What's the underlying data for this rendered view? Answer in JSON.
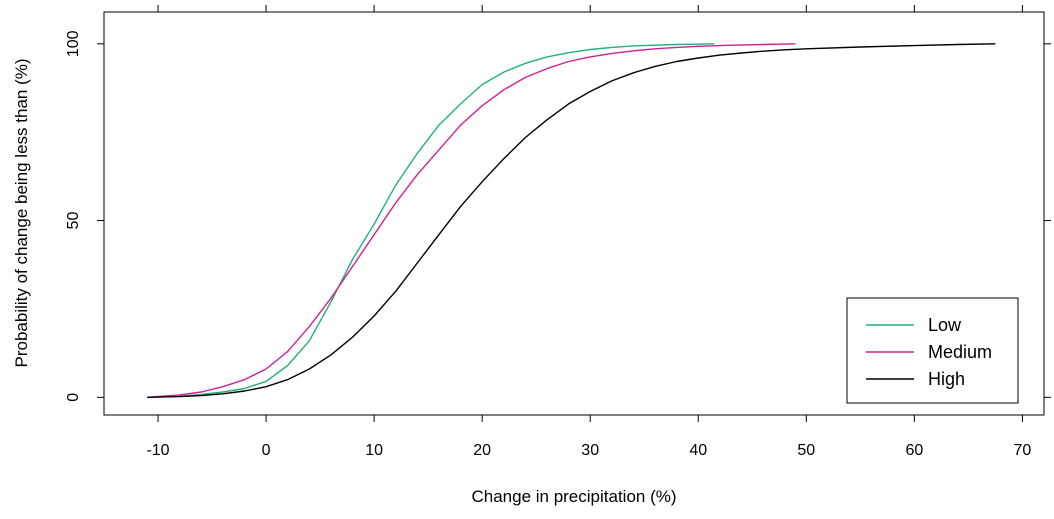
{
  "chart_data": {
    "type": "line",
    "title": "",
    "xlabel": "Change in precipitation (%)",
    "ylabel": "Probability of change being less than (%)",
    "xlim": [
      -15,
      72
    ],
    "ylim": [
      -5,
      109
    ],
    "xticks": [
      -10,
      0,
      10,
      20,
      30,
      40,
      50,
      60,
      70
    ],
    "yticks": [
      0,
      50,
      100
    ],
    "grid": false,
    "legend_position": "bottom-right",
    "series": [
      {
        "name": "Low",
        "color": "#22b07f",
        "x": [
          -11,
          -8,
          -6,
          -4,
          -2,
          0,
          2,
          4,
          6,
          8,
          10,
          12,
          14,
          16,
          18,
          20,
          22,
          24,
          26,
          28,
          30,
          32,
          34,
          36,
          38,
          40,
          41.5
        ],
        "y": [
          0,
          0.3,
          0.8,
          1.5,
          2.5,
          4.5,
          9,
          16,
          27,
          39,
          49,
          60,
          69,
          77,
          83,
          88.5,
          92,
          94.5,
          96.3,
          97.5,
          98.4,
          99,
          99.4,
          99.6,
          99.8,
          99.9,
          100
        ]
      },
      {
        "name": "Medium",
        "color": "#d02090",
        "x": [
          -11,
          -8,
          -6,
          -4,
          -2,
          0,
          2,
          4,
          6,
          8,
          10,
          12,
          14,
          16,
          18,
          20,
          22,
          24,
          26,
          28,
          30,
          32,
          34,
          36,
          38,
          40,
          43,
          46,
          49
        ],
        "y": [
          0,
          0.7,
          1.5,
          3,
          5,
          8,
          13,
          20,
          28,
          37,
          46,
          55,
          63,
          70,
          77,
          82.5,
          87,
          90.5,
          93,
          95,
          96.3,
          97.3,
          98,
          98.6,
          99,
          99.3,
          99.6,
          99.8,
          100
        ]
      },
      {
        "name": "High",
        "color": "#000000",
        "x": [
          -11,
          -8,
          -6,
          -4,
          -2,
          0,
          2,
          4,
          6,
          8,
          10,
          12,
          14,
          16,
          18,
          20,
          22,
          24,
          26,
          28,
          30,
          32,
          34,
          36,
          38,
          40,
          42,
          44,
          46,
          48,
          50,
          55,
          60,
          64,
          67.5
        ],
        "y": [
          0,
          0.2,
          0.5,
          1,
          1.8,
          3,
          5,
          8,
          12,
          17,
          23,
          30,
          38,
          46,
          54,
          61,
          67.5,
          73.5,
          78.5,
          83,
          86.5,
          89.5,
          91.8,
          93.6,
          95,
          96,
          96.8,
          97.4,
          97.9,
          98.3,
          98.6,
          99.1,
          99.5,
          99.8,
          100
        ]
      }
    ]
  }
}
